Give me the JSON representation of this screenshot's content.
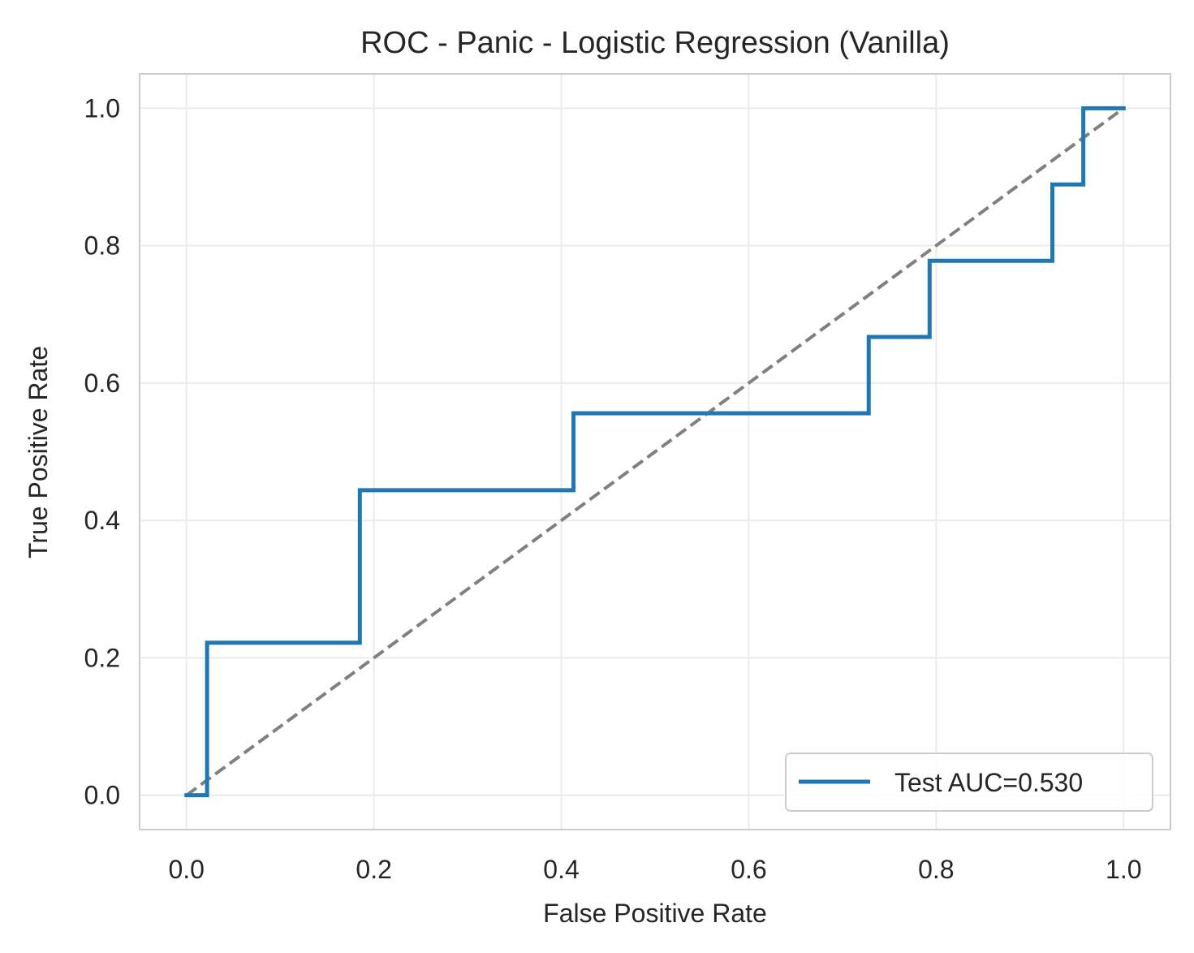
{
  "chart_data": {
    "type": "line",
    "title": "ROC - Panic - Logistic Regression (Vanilla)",
    "xlabel": "False Positive Rate",
    "ylabel": "True Positive Rate",
    "xlim": [
      -0.05,
      1.05
    ],
    "ylim": [
      -0.05,
      1.05
    ],
    "xticks": [
      0.0,
      0.2,
      0.4,
      0.6,
      0.8,
      1.0
    ],
    "yticks": [
      0.0,
      0.2,
      0.4,
      0.6,
      0.8,
      1.0
    ],
    "xtick_labels": [
      "0.0",
      "0.2",
      "0.4",
      "0.6",
      "0.8",
      "1.0"
    ],
    "ytick_labels": [
      "0.0",
      "0.2",
      "0.4",
      "0.6",
      "0.8",
      "1.0"
    ],
    "grid": true,
    "legend_position": "lower-right",
    "series": [
      {
        "name": "Test AUC=0.530",
        "color": "#1f77b4",
        "style": "solid",
        "x": [
          0.0,
          0.022,
          0.022,
          0.185,
          0.185,
          0.413,
          0.413,
          0.728,
          0.728,
          0.793,
          0.793,
          0.924,
          0.924,
          0.957,
          0.957,
          1.0
        ],
        "y": [
          0.0,
          0.0,
          0.222,
          0.222,
          0.444,
          0.444,
          0.556,
          0.556,
          0.667,
          0.667,
          0.778,
          0.778,
          0.889,
          0.889,
          1.0,
          1.0
        ]
      },
      {
        "color": "#808080",
        "style": "dashed",
        "x": [
          0.0,
          1.0
        ],
        "y": [
          0.0,
          1.0
        ]
      }
    ]
  }
}
